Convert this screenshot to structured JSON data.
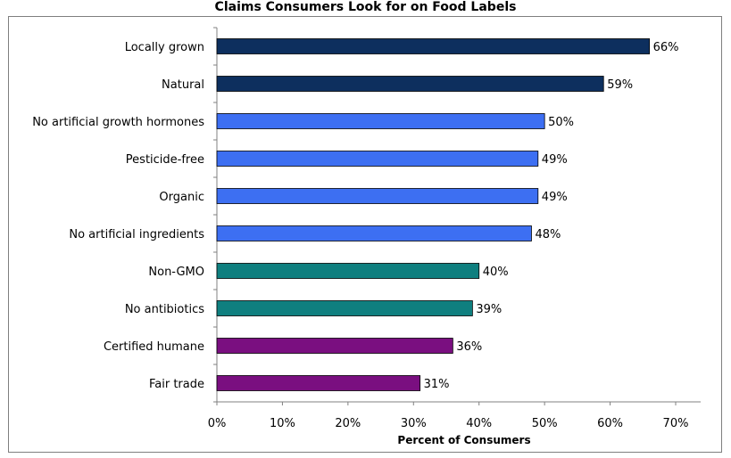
{
  "chart_data": {
    "type": "bar",
    "orientation": "horizontal",
    "title": "Claims Consumers Look for on Food Labels",
    "xlabel": "Percent of Consumers",
    "ylabel": "",
    "xlim": [
      0,
      70
    ],
    "x_ticks": [
      "0%",
      "10%",
      "20%",
      "30%",
      "40%",
      "50%",
      "60%",
      "70%"
    ],
    "grid": false,
    "legend": "none",
    "categories": [
      "Locally grown",
      "Natural",
      "No artificial growth hormones",
      "Pesticide-free",
      "Organic",
      "No artificial ingredients",
      "Non-GMO",
      "No antibiotics",
      "Certified humane",
      "Fair trade"
    ],
    "values": [
      66,
      59,
      50,
      49,
      49,
      48,
      40,
      39,
      36,
      31
    ],
    "value_labels": [
      "66%",
      "59%",
      "50%",
      "49%",
      "49%",
      "48%",
      "40%",
      "39%",
      "36%",
      "31%"
    ],
    "bar_colors": [
      "#0d2f5e",
      "#0d2f5e",
      "#3d6ff2",
      "#3d6ff2",
      "#3d6ff2",
      "#3d6ff2",
      "#0f7f7f",
      "#0f7f7f",
      "#7a0f80",
      "#7a0f80"
    ]
  }
}
